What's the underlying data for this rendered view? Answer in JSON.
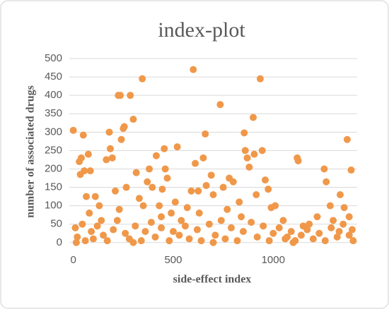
{
  "chart_data": {
    "type": "scatter",
    "title": "index-plot",
    "x_label": "side-effect index",
    "y_label": "number of  associated drugs",
    "color": "#f0984a",
    "grid": true,
    "xlim": [
      -20,
      1420
    ],
    "ylim": [
      -10,
      500
    ],
    "xticks": [
      0,
      500,
      1000
    ],
    "yticks": [
      0,
      50,
      100,
      150,
      200,
      250,
      300,
      350,
      400,
      450,
      500
    ],
    "x": [
      0,
      30,
      35,
      40,
      50,
      55,
      65,
      75,
      85,
      110,
      140,
      165,
      180,
      185,
      195,
      210,
      225,
      235,
      240,
      250,
      255,
      265,
      285,
      300,
      315,
      330,
      345,
      350,
      370,
      380,
      395,
      415,
      430,
      445,
      455,
      460,
      470,
      490,
      520,
      540,
      570,
      590,
      600,
      610,
      625,
      650,
      660,
      665,
      690,
      700,
      735,
      750,
      780,
      800,
      830,
      855,
      860,
      870,
      880,
      900,
      905,
      915,
      935,
      945,
      960,
      975,
      990,
      1010,
      1050,
      1120,
      1125,
      1150,
      1220,
      1255,
      1265,
      1285,
      1300,
      1335,
      1355,
      1370,
      1390,
      1380,
      10,
      20,
      45,
      60,
      90,
      100,
      120,
      150,
      170,
      200,
      220,
      260,
      280,
      310,
      340,
      360,
      390,
      410,
      440,
      480,
      500,
      530,
      560,
      580,
      620,
      640,
      680,
      710,
      740,
      760,
      790,
      820,
      850,
      890,
      920,
      950,
      980,
      1000,
      1030,
      1060,
      1090,
      1110,
      1140,
      1170,
      1200,
      1230,
      1260,
      1290,
      1320,
      1350,
      1380,
      1400,
      1395,
      15,
      300,
      700,
      1100,
      80,
      130,
      230,
      440,
      510,
      630,
      770,
      840,
      1070,
      1180,
      1330
    ],
    "y": [
      305,
      220,
      185,
      230,
      292,
      195,
      125,
      240,
      195,
      125,
      60,
      225,
      300,
      255,
      230,
      140,
      400,
      400,
      280,
      310,
      315,
      150,
      400,
      335,
      190,
      120,
      445,
      100,
      165,
      200,
      150,
      236,
      100,
      145,
      255,
      200,
      175,
      80,
      260,
      60,
      95,
      140,
      470,
      215,
      140,
      230,
      295,
      155,
      183,
      130,
      375,
      150,
      175,
      165,
      110,
      298,
      250,
      230,
      205,
      340,
      240,
      130,
      445,
      250,
      170,
      145,
      95,
      100,
      60,
      230,
      222,
      45,
      70,
      200,
      165,
      100,
      60,
      130,
      95,
      280,
      197,
      70,
      40,
      15,
      50,
      5,
      30,
      10,
      45,
      20,
      5,
      35,
      60,
      25,
      10,
      45,
      5,
      30,
      55,
      15,
      40,
      5,
      30,
      20,
      45,
      10,
      35,
      5,
      50,
      20,
      60,
      10,
      40,
      5,
      30,
      55,
      15,
      45,
      5,
      25,
      40,
      10,
      30,
      5,
      20,
      35,
      10,
      25,
      5,
      40,
      15,
      50,
      20,
      5,
      35,
      0,
      0,
      0,
      0,
      80,
      100,
      90,
      70,
      110,
      80,
      90,
      70,
      15,
      50,
      30
    ]
  }
}
